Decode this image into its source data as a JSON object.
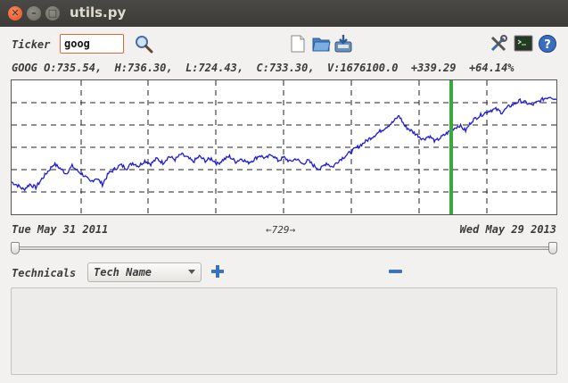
{
  "window": {
    "title": "utils.py"
  },
  "toolbar": {
    "ticker_label": "Ticker",
    "ticker_value": "goog",
    "icons": [
      "search-icon",
      "new-file-icon",
      "open-folder-icon",
      "save-icon",
      "tools-icon",
      "terminal-icon",
      "help-icon"
    ]
  },
  "stats": {
    "line": "GOOG O:735.54,  H:736.30,  L:724.43,  C:733.30,  V:1676100.0  +339.29  +64.14%"
  },
  "chart_data": {
    "type": "line",
    "x_start": "Tue May 31 2011",
    "x_end": "Wed May 29 2013",
    "grid": true,
    "cursor_color": "#3aa83a",
    "series_color": "#1a1adc",
    "series": [
      {
        "values": [
          0.2,
          0.17,
          0.13,
          0.18,
          0.15,
          0.23,
          0.3,
          0.37,
          0.33,
          0.28,
          0.35,
          0.3,
          0.26,
          0.2,
          0.24,
          0.18,
          0.28,
          0.32,
          0.36,
          0.33,
          0.38,
          0.35,
          0.4,
          0.37,
          0.42,
          0.38,
          0.44,
          0.41,
          0.46,
          0.43,
          0.39,
          0.44,
          0.4,
          0.42,
          0.37,
          0.41,
          0.44,
          0.39,
          0.42,
          0.38,
          0.41,
          0.45,
          0.42,
          0.46,
          0.4,
          0.43,
          0.39,
          0.42,
          0.37,
          0.4,
          0.35,
          0.32,
          0.38,
          0.34,
          0.4,
          0.44,
          0.48,
          0.52,
          0.56,
          0.6,
          0.64,
          0.68,
          0.72,
          0.76,
          0.82,
          0.72,
          0.68,
          0.64,
          0.6,
          0.63,
          0.58,
          0.62,
          0.66,
          0.7,
          0.73,
          0.68,
          0.77,
          0.81,
          0.84,
          0.87,
          0.88,
          0.85,
          0.9,
          0.93,
          0.96,
          0.94,
          0.92,
          0.95,
          0.98,
          1.0,
          0.97
        ]
      }
    ]
  },
  "range": {
    "start": "Tue May 31 2011",
    "end": "Wed May 29 2013",
    "days": "←729→"
  },
  "technicals": {
    "label": "Technicals",
    "select_value": "Tech Name"
  }
}
